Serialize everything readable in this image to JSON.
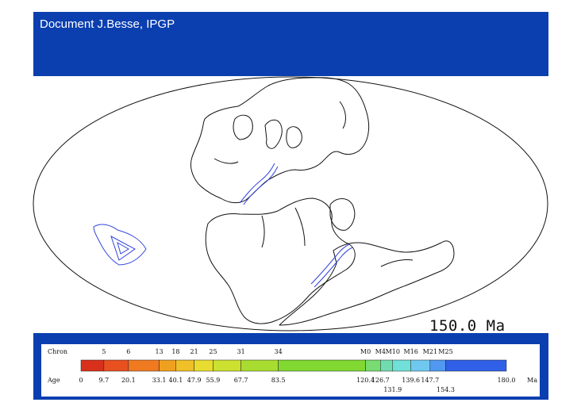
{
  "header": {
    "credit": "Document J.Besse, IPGP",
    "color": "#0b3fb0"
  },
  "map": {
    "age_label": "150.0 Ma",
    "coast_color": "#111111",
    "ridge_color": "#3344dd"
  },
  "scale": {
    "chron_label": "Chron",
    "age_label": "Age",
    "unit": "Ma",
    "chrons": [
      {
        "label": "5",
        "age": 9.7
      },
      {
        "label": "6",
        "age": 20.1
      },
      {
        "label": "13",
        "age": 33.1
      },
      {
        "label": "18",
        "age": 40.1
      },
      {
        "label": "21",
        "age": 47.9
      },
      {
        "label": "25",
        "age": 55.9
      },
      {
        "label": "31",
        "age": 67.7
      },
      {
        "label": "34",
        "age": 83.5
      },
      {
        "label": "M0",
        "age": 120.4
      },
      {
        "label": "M4",
        "age": 126.7
      },
      {
        "label": "M10",
        "age": 131.9
      },
      {
        "label": "M16",
        "age": 139.6
      },
      {
        "label": "M21",
        "age": 147.7
      },
      {
        "label": "M25",
        "age": 154.3
      }
    ],
    "ages_top": [
      "0",
      "9.7",
      "20.1",
      "33.1",
      "40.1",
      "47.9",
      "55.9",
      "67.7",
      "83.5",
      "120.4",
      "126.7",
      "139.6",
      "147.7",
      "180.0"
    ],
    "ages_bottom": [
      "131.9",
      "154.3"
    ],
    "segments": [
      {
        "from": 0,
        "to": 9.7,
        "color": "#d9301c"
      },
      {
        "from": 9.7,
        "to": 20.1,
        "color": "#e85020"
      },
      {
        "from": 20.1,
        "to": 33.1,
        "color": "#f07a20"
      },
      {
        "from": 33.1,
        "to": 40.1,
        "color": "#f0a020"
      },
      {
        "from": 40.1,
        "to": 47.9,
        "color": "#f0c028"
      },
      {
        "from": 47.9,
        "to": 55.9,
        "color": "#e8dc30"
      },
      {
        "from": 55.9,
        "to": 67.7,
        "color": "#cce030"
      },
      {
        "from": 67.7,
        "to": 83.5,
        "color": "#a8dc30"
      },
      {
        "from": 83.5,
        "to": 120.4,
        "color": "#80d830"
      },
      {
        "from": 120.4,
        "to": 126.7,
        "color": "#78dc70"
      },
      {
        "from": 126.7,
        "to": 131.9,
        "color": "#70dcb0"
      },
      {
        "from": 131.9,
        "to": 139.6,
        "color": "#70e0d8"
      },
      {
        "from": 139.6,
        "to": 147.7,
        "color": "#70c8f0"
      },
      {
        "from": 147.7,
        "to": 154.3,
        "color": "#5098f0"
      },
      {
        "from": 154.3,
        "to": 180.0,
        "color": "#3060e8"
      }
    ]
  }
}
